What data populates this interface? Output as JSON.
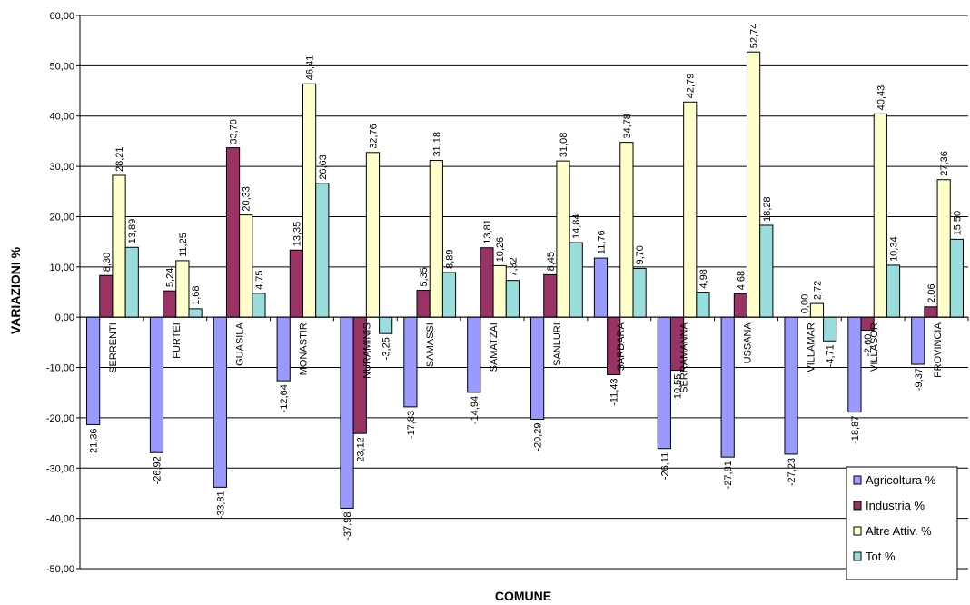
{
  "chart_data": {
    "type": "bar",
    "xlabel": "COMUNE",
    "ylabel": "VARIAZIONI %",
    "ylim": [
      -50,
      60
    ],
    "yticks": [
      -50,
      -40,
      -30,
      -20,
      -10,
      0,
      10,
      20,
      30,
      40,
      50,
      60
    ],
    "ytick_labels": [
      "-50,00",
      "-40,00",
      "-30,00",
      "-20,00",
      "-10,00",
      "0,00",
      "10,00",
      "20,00",
      "30,00",
      "40,00",
      "50,00",
      "60,00"
    ],
    "grid": true,
    "legend_position": "bottom-right",
    "categories": [
      "SERRENTI",
      "FURTEI",
      "GUASILA",
      "MONASTIR",
      "NURAMINIS",
      "SAMASSI",
      "SAMATZAI",
      "SANLURI",
      "SARDARA",
      "SERRAMANNA",
      "USSANA",
      "VILLAMAR",
      "VILLASOR",
      "PROVINCIA"
    ],
    "series": [
      {
        "name": "Agricoltura %",
        "color": "#9999ff",
        "values": [
          -21.36,
          -26.92,
          -33.81,
          -12.64,
          -37.98,
          -17.83,
          -14.94,
          -20.29,
          11.76,
          -26.11,
          -27.81,
          -27.23,
          -18.87,
          -9.37
        ],
        "labels": [
          "-21,36",
          "-26,92",
          "-33,81",
          "-12,64",
          "-37,98",
          "-17,83",
          "-14,94",
          "-20,29",
          "11,76",
          "-26,11",
          "-27,81",
          "-27,23",
          "-18,87",
          "-9,37"
        ]
      },
      {
        "name": "Industria %",
        "color": "#993366",
        "values": [
          8.3,
          5.24,
          33.7,
          13.35,
          -23.12,
          5.35,
          13.81,
          8.45,
          -11.43,
          -10.55,
          4.68,
          0.0,
          -2.6,
          2.06
        ],
        "labels": [
          "8,30",
          "5,24",
          "33,70",
          "13,35",
          "-23,12",
          "5,35",
          "13,81",
          "8,45",
          "-11,43",
          "-10,55",
          "4,68",
          "0,00",
          "-2,60",
          "2,06"
        ]
      },
      {
        "name": "Altre Attiv. %",
        "color": "#ffffcc",
        "values": [
          28.21,
          11.25,
          20.33,
          46.41,
          32.76,
          31.18,
          10.26,
          31.08,
          34.78,
          42.79,
          52.74,
          2.72,
          40.43,
          27.36
        ],
        "labels": [
          "28,21",
          "11,25",
          "20,33",
          "46,41",
          "32,76",
          "31,18",
          "10,26",
          "31,08",
          "34,78",
          "42,79",
          "52,74",
          "2,72",
          "40,43",
          "27,36"
        ]
      },
      {
        "name": "Tot %",
        "color": "#99dddd",
        "values": [
          13.89,
          1.68,
          4.75,
          26.63,
          -3.25,
          8.89,
          7.32,
          14.84,
          9.7,
          4.98,
          18.28,
          -4.71,
          10.34,
          15.5
        ],
        "labels": [
          "13,89",
          "1,68",
          "4,75",
          "26,63",
          "-3,25",
          "8,89",
          "7,32",
          "14,84",
          "9,70",
          "4,98",
          "18,28",
          "-4,71",
          "10,34",
          "15,50"
        ]
      }
    ]
  }
}
